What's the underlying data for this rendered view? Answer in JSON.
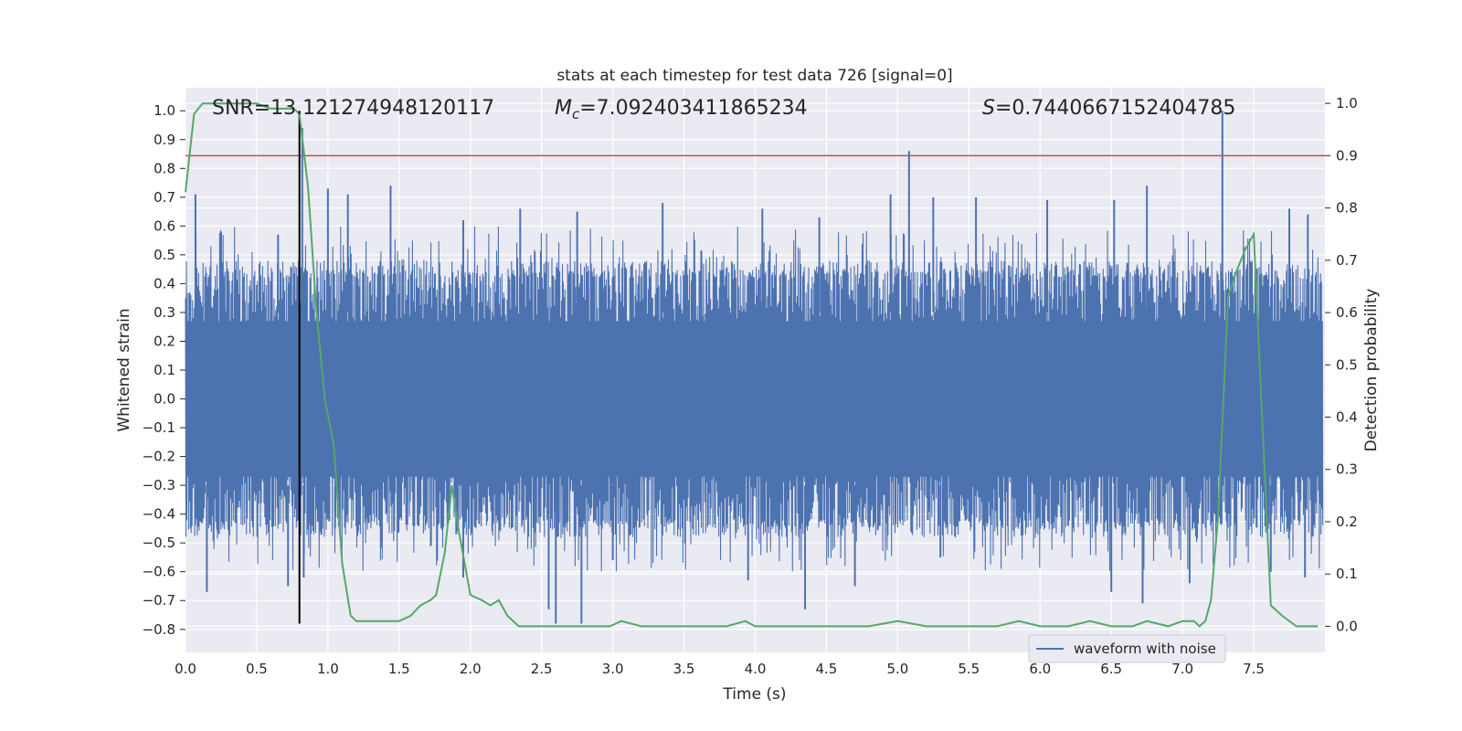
{
  "chart_data": {
    "type": "line",
    "title": "stats at each timestep for test data 726 [signal=0]",
    "xlabel": "Time (s)",
    "ylabel_left": "Whitened strain",
    "ylabel_right": "Detection probability",
    "xlim": [
      0.0,
      8.0
    ],
    "ylim_left": [
      -0.88,
      1.08
    ],
    "ylim_right": [
      -0.05,
      1.03
    ],
    "grid": true,
    "legend_position": "lower-right",
    "x_ticks": [
      "0.0",
      "0.5",
      "1.0",
      "1.5",
      "2.0",
      "2.5",
      "3.0",
      "3.5",
      "4.0",
      "4.5",
      "5.0",
      "5.5",
      "6.0",
      "6.5",
      "7.0",
      "7.5"
    ],
    "y_left_ticks": [
      "1.0",
      "0.9",
      "0.8",
      "0.7",
      "0.6",
      "0.5",
      "0.4",
      "0.3",
      "0.2",
      "0.1",
      "0.0",
      "−0.1",
      "−0.2",
      "−0.3",
      "−0.4",
      "−0.5",
      "−0.6",
      "−0.7",
      "−0.8"
    ],
    "y_right_ticks": [
      "1.0",
      "0.9",
      "0.8",
      "0.7",
      "0.6",
      "0.5",
      "0.4",
      "0.3",
      "0.2",
      "0.1",
      "0.0"
    ],
    "annotations": {
      "snr": "SNR=13.121274948120117",
      "mc_symbol": "M",
      "mc_sub": "c",
      "mc_value": "=7.092403411865234",
      "s_symbol": "S",
      "s_value": "=0.7440667152404785"
    },
    "series": [
      {
        "name": "waveform with noise",
        "axis": "left",
        "color": "#4c72b0",
        "style": "dense noise trace",
        "typical_range": [
          -0.45,
          0.45
        ],
        "peaks": [
          [
            0.07,
            0.71
          ],
          [
            0.25,
            0.58
          ],
          [
            0.65,
            0.57
          ],
          [
            0.82,
            0.94
          ],
          [
            1.0,
            0.73
          ],
          [
            1.14,
            0.71
          ],
          [
            1.44,
            0.74
          ],
          [
            1.95,
            0.62
          ],
          [
            2.35,
            0.66
          ],
          [
            2.75,
            0.65
          ],
          [
            3.35,
            0.68
          ],
          [
            4.05,
            0.66
          ],
          [
            4.45,
            0.63
          ],
          [
            4.95,
            0.71
          ],
          [
            5.08,
            0.86
          ],
          [
            5.25,
            0.7
          ],
          [
            5.55,
            0.7
          ],
          [
            6.05,
            0.69
          ],
          [
            6.52,
            0.69
          ],
          [
            6.75,
            0.74
          ],
          [
            7.28,
            1.0
          ],
          [
            7.75,
            0.66
          ],
          [
            7.88,
            0.64
          ]
        ],
        "troughs": [
          [
            0.15,
            -0.67
          ],
          [
            0.72,
            -0.65
          ],
          [
            0.83,
            -0.62
          ],
          [
            1.05,
            -0.45
          ],
          [
            1.95,
            -0.62
          ],
          [
            2.55,
            -0.73
          ],
          [
            2.6,
            -0.78
          ],
          [
            2.78,
            -0.78
          ],
          [
            3.0,
            -0.56
          ],
          [
            3.95,
            -0.63
          ],
          [
            4.35,
            -0.73
          ],
          [
            4.7,
            -0.65
          ],
          [
            5.3,
            -0.55
          ],
          [
            6.5,
            -0.67
          ],
          [
            6.72,
            -0.71
          ],
          [
            7.05,
            -0.64
          ],
          [
            7.62,
            -0.6
          ],
          [
            7.86,
            -0.62
          ]
        ]
      },
      {
        "name": "",
        "axis": "right",
        "color": "#55a868",
        "x": [
          0.0,
          0.06,
          0.12,
          0.3,
          0.5,
          0.6,
          0.7,
          0.76,
          0.8,
          0.86,
          0.92,
          0.98,
          1.04,
          1.1,
          1.16,
          1.2,
          1.3,
          1.4,
          1.5,
          1.58,
          1.65,
          1.72,
          1.76,
          1.82,
          1.87,
          1.92,
          2.0,
          2.08,
          2.14,
          2.2,
          2.26,
          2.34,
          2.5,
          2.8,
          2.98,
          3.06,
          3.2,
          3.5,
          3.8,
          3.93,
          4.0,
          4.2,
          4.3,
          4.5,
          4.8,
          5.0,
          5.2,
          5.5,
          5.7,
          5.85,
          6.0,
          6.2,
          6.35,
          6.5,
          6.65,
          6.75,
          6.9,
          7.0,
          7.08,
          7.12,
          7.16,
          7.2,
          7.25,
          7.32,
          7.38,
          7.44,
          7.5,
          7.55,
          7.62,
          7.7,
          7.8,
          7.95
        ],
        "y": [
          0.83,
          0.98,
          1.0,
          1.0,
          1.0,
          0.99,
          0.99,
          0.99,
          0.98,
          0.84,
          0.6,
          0.43,
          0.35,
          0.12,
          0.02,
          0.01,
          0.01,
          0.01,
          0.01,
          0.02,
          0.04,
          0.05,
          0.06,
          0.14,
          0.27,
          0.18,
          0.06,
          0.05,
          0.04,
          0.05,
          0.02,
          0.0,
          0.0,
          0.0,
          0.0,
          0.01,
          0.0,
          0.0,
          0.0,
          0.01,
          0.0,
          0.0,
          0.0,
          0.0,
          0.0,
          0.01,
          0.0,
          0.0,
          0.0,
          0.01,
          0.0,
          0.0,
          0.01,
          0.0,
          0.0,
          0.01,
          0.0,
          0.01,
          0.01,
          0.0,
          0.01,
          0.05,
          0.21,
          0.63,
          0.68,
          0.72,
          0.75,
          0.45,
          0.04,
          0.02,
          0.0,
          0.0
        ]
      }
    ],
    "threshold": {
      "axis": "right",
      "value": 0.9,
      "color": "#c44e52"
    },
    "marker": {
      "x": 0.8,
      "color": "#000000",
      "y_from": -0.78,
      "y_to": 1.0
    }
  }
}
